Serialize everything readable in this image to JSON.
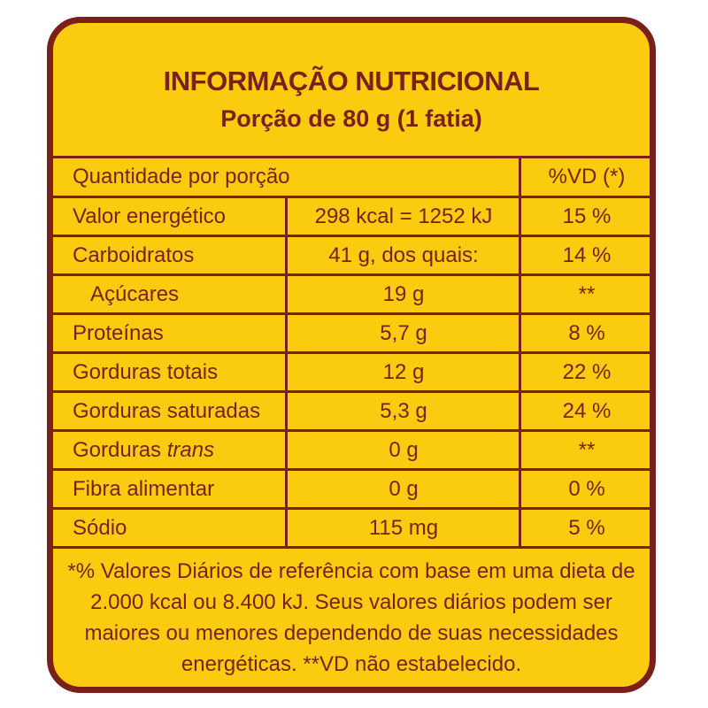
{
  "label": {
    "title": "INFORMAÇÃO NUTRICIONAL",
    "serving": "Porção de 80 g (1 fatia)",
    "header": {
      "quantity": "Quantidade por porção",
      "dv": "%VD (*)"
    },
    "rows": [
      {
        "name": "Valor energético",
        "name_italic": "",
        "amount": "298 kcal = 1252 kJ",
        "dv": "15 %"
      },
      {
        "name": "Carboidratos",
        "name_italic": "",
        "amount": "41 g, dos quais:",
        "dv": "14 %"
      },
      {
        "name": "Açúcares",
        "name_italic": "",
        "amount": "19 g",
        "dv": "**"
      },
      {
        "name": "Proteínas",
        "name_italic": "",
        "amount": "5,7 g",
        "dv": "8 %"
      },
      {
        "name": "Gorduras totais",
        "name_italic": "",
        "amount": "12 g",
        "dv": "22 %"
      },
      {
        "name": "Gorduras saturadas",
        "name_italic": "",
        "amount": "5,3 g",
        "dv": "24 %"
      },
      {
        "name": "Gorduras ",
        "name_italic": "trans",
        "amount": "0 g",
        "dv": "**"
      },
      {
        "name": "Fibra alimentar",
        "name_italic": "",
        "amount": "0 g",
        "dv": "0 %"
      },
      {
        "name": "Sódio",
        "name_italic": "",
        "amount": "115 mg",
        "dv": "5 %"
      }
    ],
    "footnote": "*% Valores Diários de referência com base em uma dieta de 2.000 kcal ou 8.400 kJ. Seus valores diários podem ser maiores ou menores dependendo de suas necessidades energéticas. **VD não estabelecido."
  },
  "colors": {
    "background": "#fbcb10",
    "ink": "#7a1f1a"
  }
}
